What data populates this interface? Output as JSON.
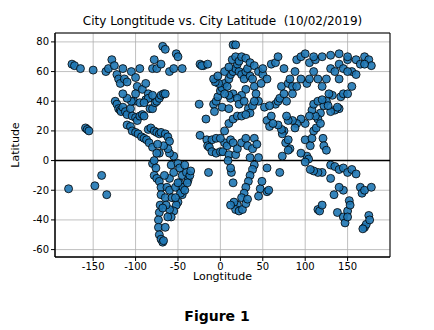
{
  "chart_data": {
    "type": "scatter",
    "title": "City Longtitude vs. City Latitude  (10/02/2019)",
    "x_label": "Longtitude",
    "y_label": "Latitude",
    "caption": "Figure 1",
    "color": "#1f77b4",
    "marker": "circle",
    "grid": true,
    "hline": 0,
    "xlim": [
      -195,
      200
    ],
    "xticks": [
      -150,
      -100,
      -50,
      0,
      50,
      100,
      150
    ],
    "ylim": [
      -65,
      86
    ],
    "yticks": [
      -60,
      -40,
      -20,
      0,
      20,
      40,
      60,
      80
    ],
    "x": [
      -179,
      -175,
      -172,
      -165,
      -159,
      -157,
      -155,
      -150,
      -148,
      -140,
      -134,
      -135,
      -132,
      -128,
      -125,
      -122,
      -120,
      -118,
      -115,
      -113,
      -110,
      -105,
      -100,
      -98,
      -95,
      -92,
      -88,
      -85,
      -80,
      -78,
      -75,
      -70,
      -68,
      -65,
      -60,
      -55,
      -52,
      -50,
      -45,
      -124,
      -122,
      -120,
      -118,
      -117,
      -115,
      -112,
      -110,
      -106,
      -104,
      -100,
      -98,
      -95,
      -92,
      -90,
      -88,
      -85,
      -83,
      -80,
      -77,
      -75,
      -72,
      -70,
      -67,
      -65,
      -102,
      -95,
      -90,
      -105,
      -110,
      -100,
      -80,
      -115,
      -110,
      -106,
      -104,
      -100,
      -97,
      -93,
      -90,
      -87,
      -84,
      -80,
      -85,
      -82,
      -78,
      -75,
      -72,
      -70,
      -65,
      -62,
      -60,
      -80,
      -78,
      -76,
      -78,
      -75,
      -72,
      -70,
      -70,
      -71,
      -72,
      -73,
      -73,
      -72,
      -70,
      -68,
      -67,
      -65,
      -65,
      -63,
      -60,
      -58,
      -55,
      -50,
      -48,
      -47,
      -45,
      -50,
      -52,
      -55,
      -58,
      -60,
      -62,
      -48,
      -45,
      -40,
      -38,
      -36,
      -35,
      -42,
      -55,
      -60,
      -62,
      -67,
      -72,
      -75,
      -74,
      -60,
      -57,
      -64,
      -68,
      -66,
      -53,
      -47,
      -44,
      -39,
      -50,
      -53,
      -42,
      -25,
      -24,
      -20,
      -17,
      -16,
      -14,
      -10,
      -24,
      -22,
      -15,
      -8,
      -5,
      -3,
      0,
      2,
      5,
      8,
      10,
      12,
      15,
      18,
      20,
      22,
      25,
      28,
      30,
      32,
      35,
      38,
      40,
      42,
      45,
      15,
      12,
      10,
      5,
      -2,
      -6,
      -8,
      -3,
      5,
      10,
      14,
      18,
      22,
      25,
      30,
      35,
      40,
      45,
      50,
      50,
      55,
      48,
      30,
      25,
      20,
      22,
      28,
      33,
      35,
      38,
      40,
      15,
      18,
      -15,
      -13,
      -10,
      -5,
      0,
      3,
      5,
      8,
      10,
      12,
      15,
      18,
      20,
      25,
      30,
      32,
      35,
      38,
      40,
      43,
      45,
      40,
      38,
      35,
      33,
      30,
      28,
      25,
      20,
      18,
      22,
      26,
      30,
      32,
      15,
      13,
      12,
      9,
      47,
      45,
      49,
      55,
      57,
      -5,
      0,
      5,
      10,
      15,
      20,
      25,
      30,
      -7,
      2,
      10,
      16,
      12,
      52,
      55,
      58,
      60,
      65,
      68,
      70,
      72,
      75,
      78,
      80,
      82,
      85,
      88,
      90,
      95,
      100,
      105,
      110,
      112,
      115,
      120,
      125,
      130,
      135,
      140,
      145,
      150,
      155,
      160,
      165,
      170,
      175,
      178,
      160,
      150,
      140,
      132,
      128,
      125,
      122,
      118,
      115,
      112,
      108,
      105,
      100,
      95,
      90,
      88,
      85,
      80,
      78,
      75,
      73,
      77,
      80,
      82,
      72,
      68,
      62,
      58,
      100,
      102,
      104,
      106,
      108,
      110,
      113,
      118,
      121,
      122,
      125,
      120,
      115,
      110,
      106,
      100,
      95,
      130,
      135,
      140,
      145,
      150,
      155,
      160,
      165,
      167,
      170,
      178,
      140,
      135,
      138,
      130,
      142,
      145,
      150,
      155,
      73,
      80,
      70,
      55,
      60,
      65,
      68,
      75,
      110,
      115,
      120,
      127,
      102,
      105,
      95,
      90,
      85,
      115,
      117,
      120,
      130,
      138,
      145,
      147,
      150,
      152,
      145,
      140,
      134,
      170,
      172,
      175,
      168,
      176,
      150,
      153,
      110,
      120,
      130,
      140,
      150,
      170
    ],
    "values": [
      -19,
      65,
      64,
      62,
      22,
      21,
      20,
      61,
      -17,
      -10,
      -23,
      60,
      62,
      68,
      64,
      58,
      55,
      52,
      62,
      55,
      53,
      60,
      56,
      50,
      62,
      48,
      52,
      45,
      62,
      68,
      62,
      65,
      77,
      75,
      60,
      62,
      72,
      70,
      62,
      40,
      38,
      35,
      34,
      33,
      36,
      33,
      31,
      35,
      30,
      29,
      27,
      30,
      31,
      30,
      41,
      42,
      35,
      35,
      39,
      40,
      42,
      44,
      45,
      45,
      40,
      39,
      39,
      40,
      42,
      45,
      44,
      45,
      24,
      23,
      20,
      19,
      18,
      16,
      15,
      14,
      12,
      9,
      21,
      22,
      20,
      19,
      18,
      19,
      18,
      16,
      13,
      -2,
      0,
      -5,
      -10,
      -12,
      -14,
      -18,
      -23,
      -30,
      -35,
      -40,
      -45,
      -50,
      -53,
      -55,
      -54,
      -45,
      -25,
      -18,
      -12,
      -3,
      -8,
      -2,
      -15,
      -20,
      -23,
      -28,
      -30,
      -34,
      -38,
      -33,
      -38,
      -5,
      -10,
      -8,
      -13,
      -10,
      -7,
      -3,
      3,
      5,
      8,
      10,
      5,
      5,
      11,
      -20,
      -25,
      -30,
      -32,
      -10,
      -18,
      -22,
      -18,
      -15,
      -15,
      -25,
      -20,
      38,
      65,
      64,
      28,
      14,
      -8,
      14,
      17,
      64,
      65,
      38,
      40,
      43,
      47,
      49,
      52,
      50,
      55,
      58,
      60,
      62,
      65,
      60,
      58,
      55,
      60,
      62,
      57,
      55,
      50,
      45,
      40,
      45,
      42,
      44,
      45,
      52,
      53,
      55,
      57,
      60,
      63,
      68,
      70,
      67,
      70,
      69,
      66,
      64,
      60,
      58,
      62,
      55,
      52,
      48,
      44,
      42,
      38,
      40,
      35,
      32,
      37,
      40,
      78,
      78,
      10,
      9,
      6,
      5,
      6,
      6,
      12,
      10,
      4,
      14,
      12,
      4,
      8,
      12,
      15,
      10,
      2,
      8,
      15,
      11,
      2,
      -3,
      -6,
      -10,
      -14,
      -18,
      -22,
      -25,
      -30,
      -33,
      -34,
      -33,
      -29,
      -26,
      -15,
      -8,
      -5,
      0,
      -19,
      -24,
      -14,
      -21,
      -20,
      15,
      15,
      20,
      25,
      28,
      30,
      30,
      31,
      33,
      36,
      35,
      -28,
      -30,
      36,
      27,
      23,
      30,
      38,
      40,
      42,
      50,
      45,
      40,
      52,
      55,
      50,
      60,
      68,
      70,
      72,
      66,
      60,
      68,
      55,
      50,
      55,
      62,
      60,
      65,
      62,
      68,
      60,
      68,
      65,
      70,
      68,
      64,
      58,
      60,
      55,
      44,
      45,
      40,
      37,
      32,
      28,
      30,
      34,
      30,
      25,
      28,
      25,
      22,
      27,
      27,
      30,
      20,
      18,
      12,
      14,
      8,
      21,
      24,
      25,
      37,
      14,
      3,
      1,
      10,
      15,
      20,
      22,
      25,
      15,
      10,
      7,
      -8,
      -8,
      -7,
      -6,
      -1,
      5,
      -3,
      -4,
      -6,
      -5,
      -8,
      -6,
      -9,
      -18,
      -22,
      -20,
      -18,
      35,
      34,
      36,
      33,
      43,
      45,
      45,
      50,
      3,
      7,
      -8,
      -5,
      65,
      66,
      70,
      62,
      38,
      40,
      41,
      37,
      52,
      55,
      55,
      50,
      45,
      -33,
      -34,
      -30,
      -12,
      -35,
      -38,
      -42,
      -34,
      -27,
      -20,
      -18,
      -23,
      -45,
      -43,
      -37,
      -46,
      -40,
      -38,
      -30,
      70,
      70,
      71,
      72,
      70,
      65
    ]
  }
}
